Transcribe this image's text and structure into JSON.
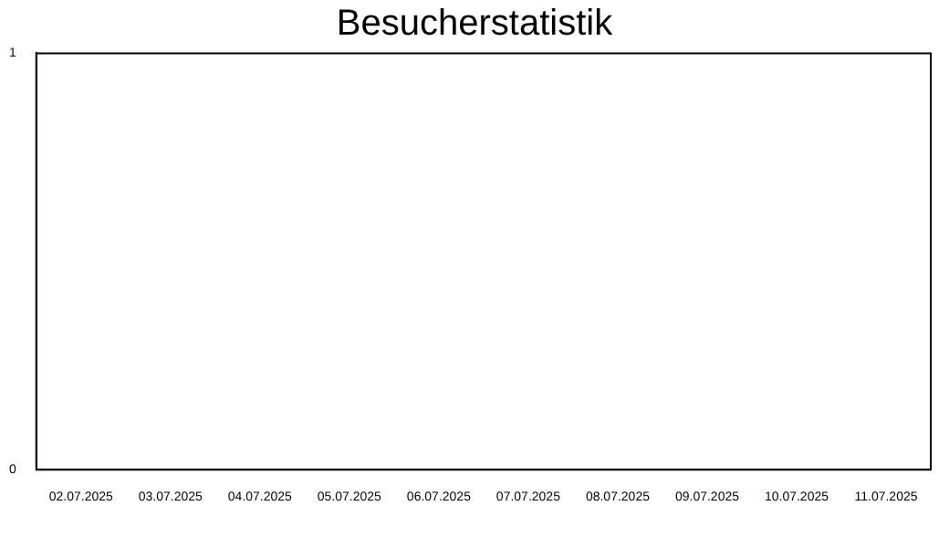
{
  "chart_data": {
    "type": "bar",
    "title": "Besucherstatistik",
    "categories": [
      "02.07.2025",
      "03.07.2025",
      "04.07.2025",
      "05.07.2025",
      "06.07.2025",
      "07.07.2025",
      "08.07.2025",
      "09.07.2025",
      "10.07.2025",
      "11.07.2025"
    ],
    "values": [
      0,
      0,
      0,
      0,
      0,
      0,
      0,
      0,
      0,
      0
    ],
    "ylim": [
      0,
      1
    ],
    "yticks": [
      0,
      1
    ]
  }
}
